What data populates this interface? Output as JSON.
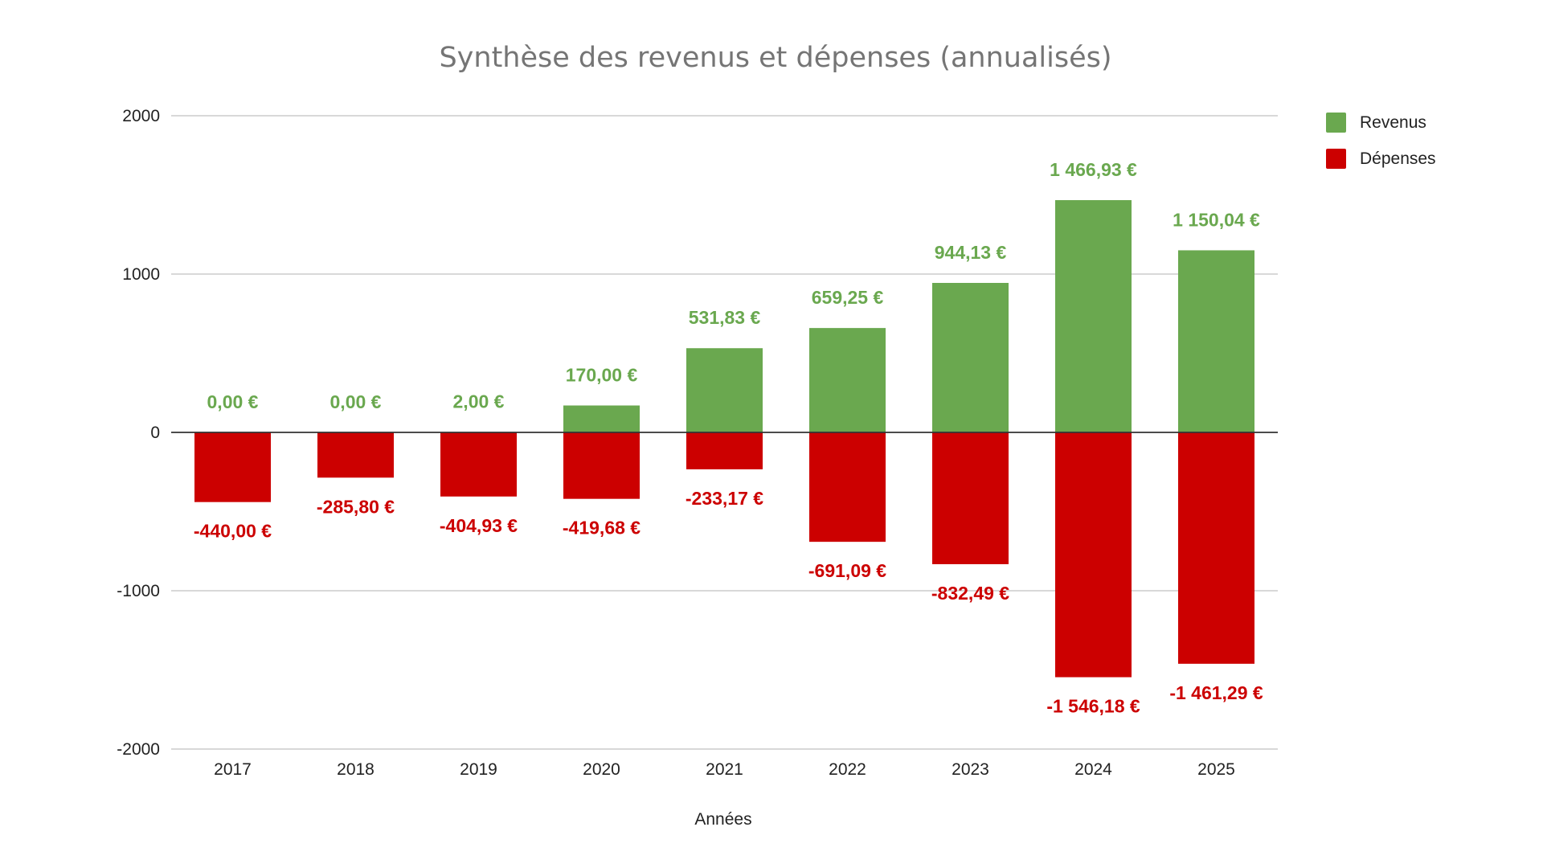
{
  "chart_data": {
    "type": "bar",
    "title": "Synthèse des revenus et dépenses (annualisés)",
    "xlabel": "Années",
    "ylabel": "",
    "ylim": [
      -2000,
      2000
    ],
    "yticks": [
      "2000",
      "1000",
      "0",
      "-1000",
      "-2000"
    ],
    "ytick_values": [
      2000,
      1000,
      0,
      -1000,
      -2000
    ],
    "grid": true,
    "legend_position": "right",
    "categories": [
      "2017",
      "2018",
      "2019",
      "2020",
      "2021",
      "2022",
      "2023",
      "2024",
      "2025"
    ],
    "series": [
      {
        "name": "Revenus",
        "color": "#6aa84f",
        "values": [
          0,
          0,
          2,
          170,
          531.83,
          659.25,
          944.13,
          1466.93,
          1150.04
        ],
        "labels": [
          "0,00 €",
          "0,00 €",
          "2,00 €",
          "170,00 €",
          "531,83 €",
          "659,25 €",
          "944,13 €",
          "1 466,93 €",
          "1 150,04 €"
        ]
      },
      {
        "name": "Dépenses",
        "color": "#cc0000",
        "values": [
          -440,
          -285.8,
          -404.93,
          -419.68,
          -233.17,
          -691.09,
          -832.49,
          -1546.18,
          -1461.29
        ],
        "labels": [
          "-440,00 €",
          "-285,80 €",
          "-404,93 €",
          "-419,68 €",
          "-233,17 €",
          "-691,09 €",
          "-832,49 €",
          "-1 546,18 €",
          "-1 461,29 €"
        ]
      }
    ]
  }
}
